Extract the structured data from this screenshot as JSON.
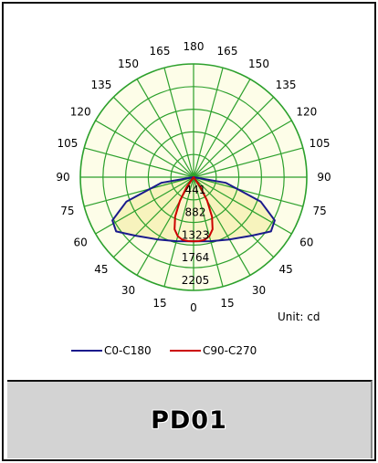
{
  "chart_data": {
    "type": "polar",
    "angle_labels": [
      {
        "angle": 180,
        "text": "180"
      },
      {
        "angle": 165,
        "text": "165"
      },
      {
        "angle": -165,
        "text": "165"
      },
      {
        "angle": 150,
        "text": "150"
      },
      {
        "angle": -150,
        "text": "150"
      },
      {
        "angle": 135,
        "text": "135"
      },
      {
        "angle": -135,
        "text": "135"
      },
      {
        "angle": 120,
        "text": "120"
      },
      {
        "angle": -120,
        "text": "120"
      },
      {
        "angle": 105,
        "text": "105"
      },
      {
        "angle": -105,
        "text": "105"
      },
      {
        "angle": 90,
        "text": "90"
      },
      {
        "angle": -90,
        "text": "90"
      },
      {
        "angle": 75,
        "text": "75"
      },
      {
        "angle": -75,
        "text": "75"
      },
      {
        "angle": 60,
        "text": "60"
      },
      {
        "angle": -60,
        "text": "60"
      },
      {
        "angle": 45,
        "text": "45"
      },
      {
        "angle": -45,
        "text": "45"
      },
      {
        "angle": 30,
        "text": "30"
      },
      {
        "angle": -30,
        "text": "30"
      },
      {
        "angle": 15,
        "text": "15"
      },
      {
        "angle": -15,
        "text": "15"
      },
      {
        "angle": 0,
        "text": "0"
      }
    ],
    "radial_labels": [
      "441",
      "882",
      "1323",
      "1764",
      "2205"
    ],
    "radial_max": 2205,
    "unit_label": "Unit: cd",
    "grid": true,
    "legend_position": "bottom",
    "series": [
      {
        "name": "C0-C180",
        "color": "#1a1a8c",
        "points": [
          {
            "angle": 0,
            "value": 1250
          },
          {
            "angle": 15,
            "value": 1290
          },
          {
            "angle": 30,
            "value": 1400
          },
          {
            "angle": 45,
            "value": 1610
          },
          {
            "angle": 55,
            "value": 1840
          },
          {
            "angle": 62,
            "value": 1790
          },
          {
            "angle": 70,
            "value": 1390
          },
          {
            "angle": 80,
            "value": 640
          },
          {
            "angle": 90,
            "value": 0
          },
          {
            "angle": -80,
            "value": 640
          },
          {
            "angle": -70,
            "value": 1390
          },
          {
            "angle": -62,
            "value": 1790
          },
          {
            "angle": -55,
            "value": 1840
          },
          {
            "angle": -45,
            "value": 1610
          },
          {
            "angle": -30,
            "value": 1400
          },
          {
            "angle": -15,
            "value": 1290
          }
        ]
      },
      {
        "name": "C90-C270",
        "color": "#cc0000",
        "points": [
          {
            "angle": 0,
            "value": 1250
          },
          {
            "angle": 5,
            "value": 1250
          },
          {
            "angle": 10,
            "value": 1240
          },
          {
            "angle": 15,
            "value": 1190
          },
          {
            "angle": 20,
            "value": 1080
          },
          {
            "angle": 25,
            "value": 850
          },
          {
            "angle": 30,
            "value": 530
          },
          {
            "angle": 35,
            "value": 230
          },
          {
            "angle": 40,
            "value": 0
          },
          {
            "angle": -35,
            "value": 230
          },
          {
            "angle": -30,
            "value": 530
          },
          {
            "angle": -25,
            "value": 850
          },
          {
            "angle": -20,
            "value": 1080
          },
          {
            "angle": -15,
            "value": 1190
          },
          {
            "angle": -10,
            "value": 1240
          },
          {
            "angle": -5,
            "value": 1250
          }
        ]
      }
    ]
  },
  "legend": [
    {
      "label": "C0-C180",
      "color": "#1a1a8c"
    },
    {
      "label": "C90-C270",
      "color": "#cc0000"
    }
  ],
  "footer": {
    "product_name": "PD01"
  }
}
